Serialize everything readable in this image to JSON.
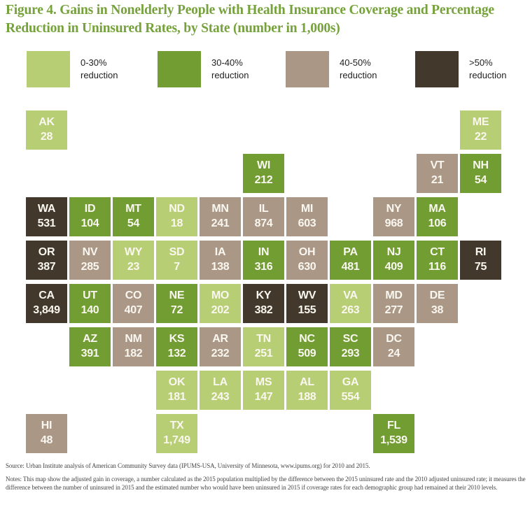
{
  "figure": {
    "title_line1": "Figure 4. Gains in Nonelderly People with Health Insurance Coverage and Percentage",
    "title_line2": "Reduction in Uninsured Rates, by State (number in 1,000s)"
  },
  "colors": {
    "title_green": "#76a23c",
    "tile_text": "#f9f7f0",
    "bands": {
      "0-30": "#b8ce75",
      "30-40": "#719d32",
      "40-50": "#ab9786",
      ">50": "#42382b"
    }
  },
  "legend": {
    "items": [
      {
        "band": "0-30",
        "label": "0-30%\nreduction"
      },
      {
        "band": "30-40",
        "label": "30-40%\nreduction"
      },
      {
        "band": "40-50",
        "label": "40-50%\nreduction"
      },
      {
        "band": ">50",
        "label": ">50%\nreduction"
      }
    ]
  },
  "chart_data": {
    "type": "heatmap",
    "subtype": "state-tile-cartogram",
    "title": "Figure 4. Gains in Nonelderly People with Health Insurance Coverage and Percentage Reduction in Uninsured Rates, by State (number in 1,000s)",
    "value_unit": "gain in coverage, thousands of people",
    "band_categories": [
      "0-30% reduction",
      "30-40% reduction",
      "40-50% reduction",
      ">50% reduction"
    ],
    "grid": {
      "rows": 8,
      "cols": 11
    },
    "states": [
      {
        "abbr": "AK",
        "value": "28",
        "band": "0-30",
        "row": 1,
        "col": 1
      },
      {
        "abbr": "ME",
        "value": "22",
        "band": "0-30",
        "row": 1,
        "col": 11
      },
      {
        "abbr": "WI",
        "value": "212",
        "band": "30-40",
        "row": 2,
        "col": 6
      },
      {
        "abbr": "VT",
        "value": "21",
        "band": "40-50",
        "row": 2,
        "col": 10
      },
      {
        "abbr": "NH",
        "value": "54",
        "band": "30-40",
        "row": 2,
        "col": 11
      },
      {
        "abbr": "WA",
        "value": "531",
        "band": ">50",
        "row": 3,
        "col": 1
      },
      {
        "abbr": "ID",
        "value": "104",
        "band": "30-40",
        "row": 3,
        "col": 2
      },
      {
        "abbr": "MT",
        "value": "54",
        "band": "30-40",
        "row": 3,
        "col": 3
      },
      {
        "abbr": "ND",
        "value": "18",
        "band": "0-30",
        "row": 3,
        "col": 4
      },
      {
        "abbr": "MN",
        "value": "241",
        "band": "40-50",
        "row": 3,
        "col": 5
      },
      {
        "abbr": "IL",
        "value": "874",
        "band": "40-50",
        "row": 3,
        "col": 6
      },
      {
        "abbr": "MI",
        "value": "603",
        "band": "40-50",
        "row": 3,
        "col": 7
      },
      {
        "abbr": "NY",
        "value": "968",
        "band": "40-50",
        "row": 3,
        "col": 9
      },
      {
        "abbr": "MA",
        "value": "106",
        "band": "30-40",
        "row": 3,
        "col": 10
      },
      {
        "abbr": "OR",
        "value": "387",
        "band": ">50",
        "row": 4,
        "col": 1
      },
      {
        "abbr": "NV",
        "value": "285",
        "band": "40-50",
        "row": 4,
        "col": 2
      },
      {
        "abbr": "WY",
        "value": "23",
        "band": "0-30",
        "row": 4,
        "col": 3
      },
      {
        "abbr": "SD",
        "value": "7",
        "band": "0-30",
        "row": 4,
        "col": 4
      },
      {
        "abbr": "IA",
        "value": "138",
        "band": "40-50",
        "row": 4,
        "col": 5
      },
      {
        "abbr": "IN",
        "value": "316",
        "band": "30-40",
        "row": 4,
        "col": 6
      },
      {
        "abbr": "OH",
        "value": "630",
        "band": "40-50",
        "row": 4,
        "col": 7
      },
      {
        "abbr": "PA",
        "value": "481",
        "band": "30-40",
        "row": 4,
        "col": 8
      },
      {
        "abbr": "NJ",
        "value": "409",
        "band": "30-40",
        "row": 4,
        "col": 9
      },
      {
        "abbr": "CT",
        "value": "116",
        "band": "30-40",
        "row": 4,
        "col": 10
      },
      {
        "abbr": "RI",
        "value": "75",
        "band": ">50",
        "row": 4,
        "col": 11
      },
      {
        "abbr": "CA",
        "value": "3,849",
        "band": ">50",
        "row": 5,
        "col": 1
      },
      {
        "abbr": "UT",
        "value": "140",
        "band": "30-40",
        "row": 5,
        "col": 2
      },
      {
        "abbr": "CO",
        "value": "407",
        "band": "40-50",
        "row": 5,
        "col": 3
      },
      {
        "abbr": "NE",
        "value": "72",
        "band": "30-40",
        "row": 5,
        "col": 4
      },
      {
        "abbr": "MO",
        "value": "202",
        "band": "0-30",
        "row": 5,
        "col": 5
      },
      {
        "abbr": "KY",
        "value": "382",
        "band": ">50",
        "row": 5,
        "col": 6
      },
      {
        "abbr": "WV",
        "value": "155",
        "band": ">50",
        "row": 5,
        "col": 7
      },
      {
        "abbr": "VA",
        "value": "263",
        "band": "0-30",
        "row": 5,
        "col": 8
      },
      {
        "abbr": "MD",
        "value": "277",
        "band": "40-50",
        "row": 5,
        "col": 9
      },
      {
        "abbr": "DE",
        "value": "38",
        "band": "40-50",
        "row": 5,
        "col": 10
      },
      {
        "abbr": "AZ",
        "value": "391",
        "band": "30-40",
        "row": 6,
        "col": 2
      },
      {
        "abbr": "NM",
        "value": "182",
        "band": "40-50",
        "row": 6,
        "col": 3
      },
      {
        "abbr": "KS",
        "value": "132",
        "band": "30-40",
        "row": 6,
        "col": 4
      },
      {
        "abbr": "AR",
        "value": "232",
        "band": "40-50",
        "row": 6,
        "col": 5
      },
      {
        "abbr": "TN",
        "value": "251",
        "band": "0-30",
        "row": 6,
        "col": 6
      },
      {
        "abbr": "NC",
        "value": "509",
        "band": "30-40",
        "row": 6,
        "col": 7
      },
      {
        "abbr": "SC",
        "value": "293",
        "band": "30-40",
        "row": 6,
        "col": 8
      },
      {
        "abbr": "DC",
        "value": "24",
        "band": "40-50",
        "row": 6,
        "col": 9
      },
      {
        "abbr": "OK",
        "value": "181",
        "band": "0-30",
        "row": 7,
        "col": 4
      },
      {
        "abbr": "LA",
        "value": "243",
        "band": "0-30",
        "row": 7,
        "col": 5
      },
      {
        "abbr": "MS",
        "value": "147",
        "band": "0-30",
        "row": 7,
        "col": 6
      },
      {
        "abbr": "AL",
        "value": "188",
        "band": "0-30",
        "row": 7,
        "col": 7
      },
      {
        "abbr": "GA",
        "value": "554",
        "band": "0-30",
        "row": 7,
        "col": 8
      },
      {
        "abbr": "HI",
        "value": "48",
        "band": "40-50",
        "row": 8,
        "col": 1
      },
      {
        "abbr": "TX",
        "value": "1,749",
        "band": "0-30",
        "row": 8,
        "col": 4
      },
      {
        "abbr": "FL",
        "value": "1,539",
        "band": "30-40",
        "row": 8,
        "col": 9
      }
    ]
  },
  "footer": {
    "source": "Source: Urban Institute analysis of American Community Survey data (IPUMS-USA, University of Minnesota, www.ipums.org) for 2010 and 2015.",
    "notes": "Notes: This map show the adjusted gain in coverage, a number calculated as the 2015 population multiplied by the difference between the 2015 uninsured rate and the 2010 adjusted uninsured rate; it measures the difference between the number of uninsured in 2015 and the estimated number who would have been uninsured in 2015 if coverage rates for each demographic group had remained at their 2010 levels."
  }
}
